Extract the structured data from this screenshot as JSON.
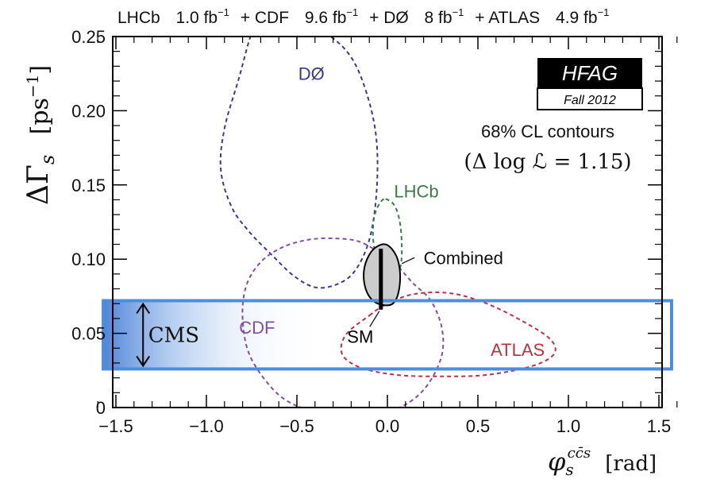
{
  "chart_data": {
    "type": "contour",
    "header": {
      "parts": [
        {
          "label": "LHCb",
          "value": "1.0 fb",
          "sup": "−1"
        },
        {
          "label": "+ CDF",
          "value": "9.6 fb",
          "sup": "−1"
        },
        {
          "label": "+ DØ",
          "value": "8 fb",
          "sup": "−1"
        },
        {
          "label": "+ ATLAS",
          "value": "4.9 fb",
          "sup": "−1"
        }
      ]
    },
    "xlabel": {
      "symbol": "φ",
      "sub": "s",
      "sup": "cc̄s",
      "unit": "[rad]"
    },
    "ylabel": {
      "symbol": "ΔΓ",
      "sub": "s",
      "unit_open": "[ps",
      "unit_sup": "−1",
      "unit_close": "]"
    },
    "xlim": [
      -1.6,
      1.6
    ],
    "ylim": [
      0,
      0.25
    ],
    "x_ticks": [
      -1.5,
      -1.0,
      -0.5,
      0.0,
      0.5,
      1.0,
      1.5
    ],
    "x_tick_labels": [
      "−1.5",
      "−1.0",
      "−0.5",
      "0.0",
      "0.5",
      "1.0",
      "1.5"
    ],
    "y_ticks": [
      0,
      0.05,
      0.1,
      0.15,
      0.2,
      0.25
    ],
    "y_tick_labels": [
      "0",
      "0.05",
      "0.10",
      "0.15",
      "0.20",
      "0.25"
    ],
    "logo": {
      "top": "HFAG",
      "bottom": "Fall 2012"
    },
    "cl_note": {
      "line1": "68% CL contours",
      "line2": "(Δ log ℒ = 1.15)"
    },
    "series": [
      {
        "name": "DØ",
        "color": "#3c3a85",
        "style": "dashed",
        "closed": true,
        "label": {
          "text": "DØ",
          "x": -0.42,
          "y": 0.225
        },
        "points": [
          [
            -0.74,
            0.255
          ],
          [
            -0.82,
            0.222
          ],
          [
            -0.9,
            0.188
          ],
          [
            -0.92,
            0.16
          ],
          [
            -0.86,
            0.135
          ],
          [
            -0.76,
            0.118
          ],
          [
            -0.64,
            0.103
          ],
          [
            -0.52,
            0.089
          ],
          [
            -0.4,
            0.081
          ],
          [
            -0.28,
            0.083
          ],
          [
            -0.18,
            0.092
          ],
          [
            -0.1,
            0.113
          ],
          [
            -0.06,
            0.145
          ],
          [
            -0.06,
            0.18
          ],
          [
            -0.11,
            0.21
          ],
          [
            -0.2,
            0.236
          ],
          [
            -0.34,
            0.252
          ],
          [
            -0.52,
            0.259
          ],
          [
            -0.66,
            0.259
          ]
        ]
      },
      {
        "name": "LHCb",
        "color": "#3d7a4a",
        "style": "dashed",
        "closed": true,
        "label": {
          "text": "LHCb",
          "x": 0.16,
          "y": 0.146
        },
        "points": [
          [
            -0.01,
            0.1405
          ],
          [
            0.04,
            0.136
          ],
          [
            0.07,
            0.124
          ],
          [
            0.08,
            0.106
          ],
          [
            0.07,
            0.094
          ],
          [
            0.04,
            0.091
          ],
          [
            0.0,
            0.093
          ],
          [
            -0.04,
            0.098
          ],
          [
            -0.07,
            0.106
          ],
          [
            -0.08,
            0.118
          ],
          [
            -0.07,
            0.13
          ],
          [
            -0.04,
            0.138
          ]
        ]
      },
      {
        "name": "CDF",
        "color": "#8050a0",
        "style": "dashed",
        "closed": true,
        "label": {
          "text": "CDF",
          "x": -0.72,
          "y": 0.054
        },
        "points": [
          [
            -0.5,
            0.001
          ],
          [
            -0.63,
            0.012
          ],
          [
            -0.76,
            0.035
          ],
          [
            -0.8,
            0.06
          ],
          [
            -0.78,
            0.082
          ],
          [
            -0.7,
            0.098
          ],
          [
            -0.58,
            0.108
          ],
          [
            -0.44,
            0.113
          ],
          [
            -0.3,
            0.114
          ],
          [
            -0.16,
            0.112
          ],
          [
            -0.04,
            0.104
          ],
          [
            0.05,
            0.096
          ],
          [
            0.14,
            0.084
          ],
          [
            0.24,
            0.072
          ],
          [
            0.3,
            0.054
          ],
          [
            0.3,
            0.035
          ],
          [
            0.22,
            0.015
          ],
          [
            0.1,
            0.002
          ],
          [
            -0.06,
            -0.004
          ],
          [
            -0.22,
            -0.004
          ],
          [
            -0.38,
            -0.002
          ]
        ]
      },
      {
        "name": "ATLAS",
        "color": "#c03040",
        "style": "dashed",
        "closed": true,
        "label": {
          "text": "ATLAS",
          "x": 0.72,
          "y": 0.039
        },
        "points": [
          [
            -0.1,
            0.062
          ],
          [
            0.0,
            0.07
          ],
          [
            0.15,
            0.0765
          ],
          [
            0.35,
            0.077
          ],
          [
            0.55,
            0.07
          ],
          [
            0.75,
            0.058
          ],
          [
            0.9,
            0.046
          ],
          [
            0.92,
            0.036
          ],
          [
            0.8,
            0.028
          ],
          [
            0.55,
            0.022
          ],
          [
            0.3,
            0.021
          ],
          [
            0.05,
            0.022
          ],
          [
            -0.15,
            0.027
          ],
          [
            -0.25,
            0.036
          ],
          [
            -0.23,
            0.049
          ]
        ]
      },
      {
        "name": "Combined",
        "color": "#000000",
        "fill": "#cccccc",
        "style": "solid",
        "closed": true,
        "label": {
          "text": "Combined",
          "x": 0.42,
          "y": 0.101
        },
        "points": [
          [
            0.0,
            0.1095
          ],
          [
            0.05,
            0.102
          ],
          [
            0.07,
            0.09
          ],
          [
            0.06,
            0.077
          ],
          [
            0.03,
            0.07
          ],
          [
            -0.02,
            0.069
          ],
          [
            -0.08,
            0.072
          ],
          [
            -0.12,
            0.08
          ],
          [
            -0.13,
            0.092
          ],
          [
            -0.1,
            0.103
          ],
          [
            -0.05,
            0.109
          ]
        ]
      }
    ],
    "sm": {
      "label": "SM",
      "x": -0.036,
      "y_min": 0.066,
      "y_max": 0.107,
      "label_x": -0.15,
      "label_y": 0.048
    },
    "cms": {
      "label": "CMS",
      "x_min": -1.57,
      "x_max": 1.57,
      "y_min": 0.026,
      "y_max": 0.072,
      "arrow_x": -1.35,
      "label_x": -1.18,
      "label_y": 0.049,
      "color": "#4a8ee0"
    }
  }
}
